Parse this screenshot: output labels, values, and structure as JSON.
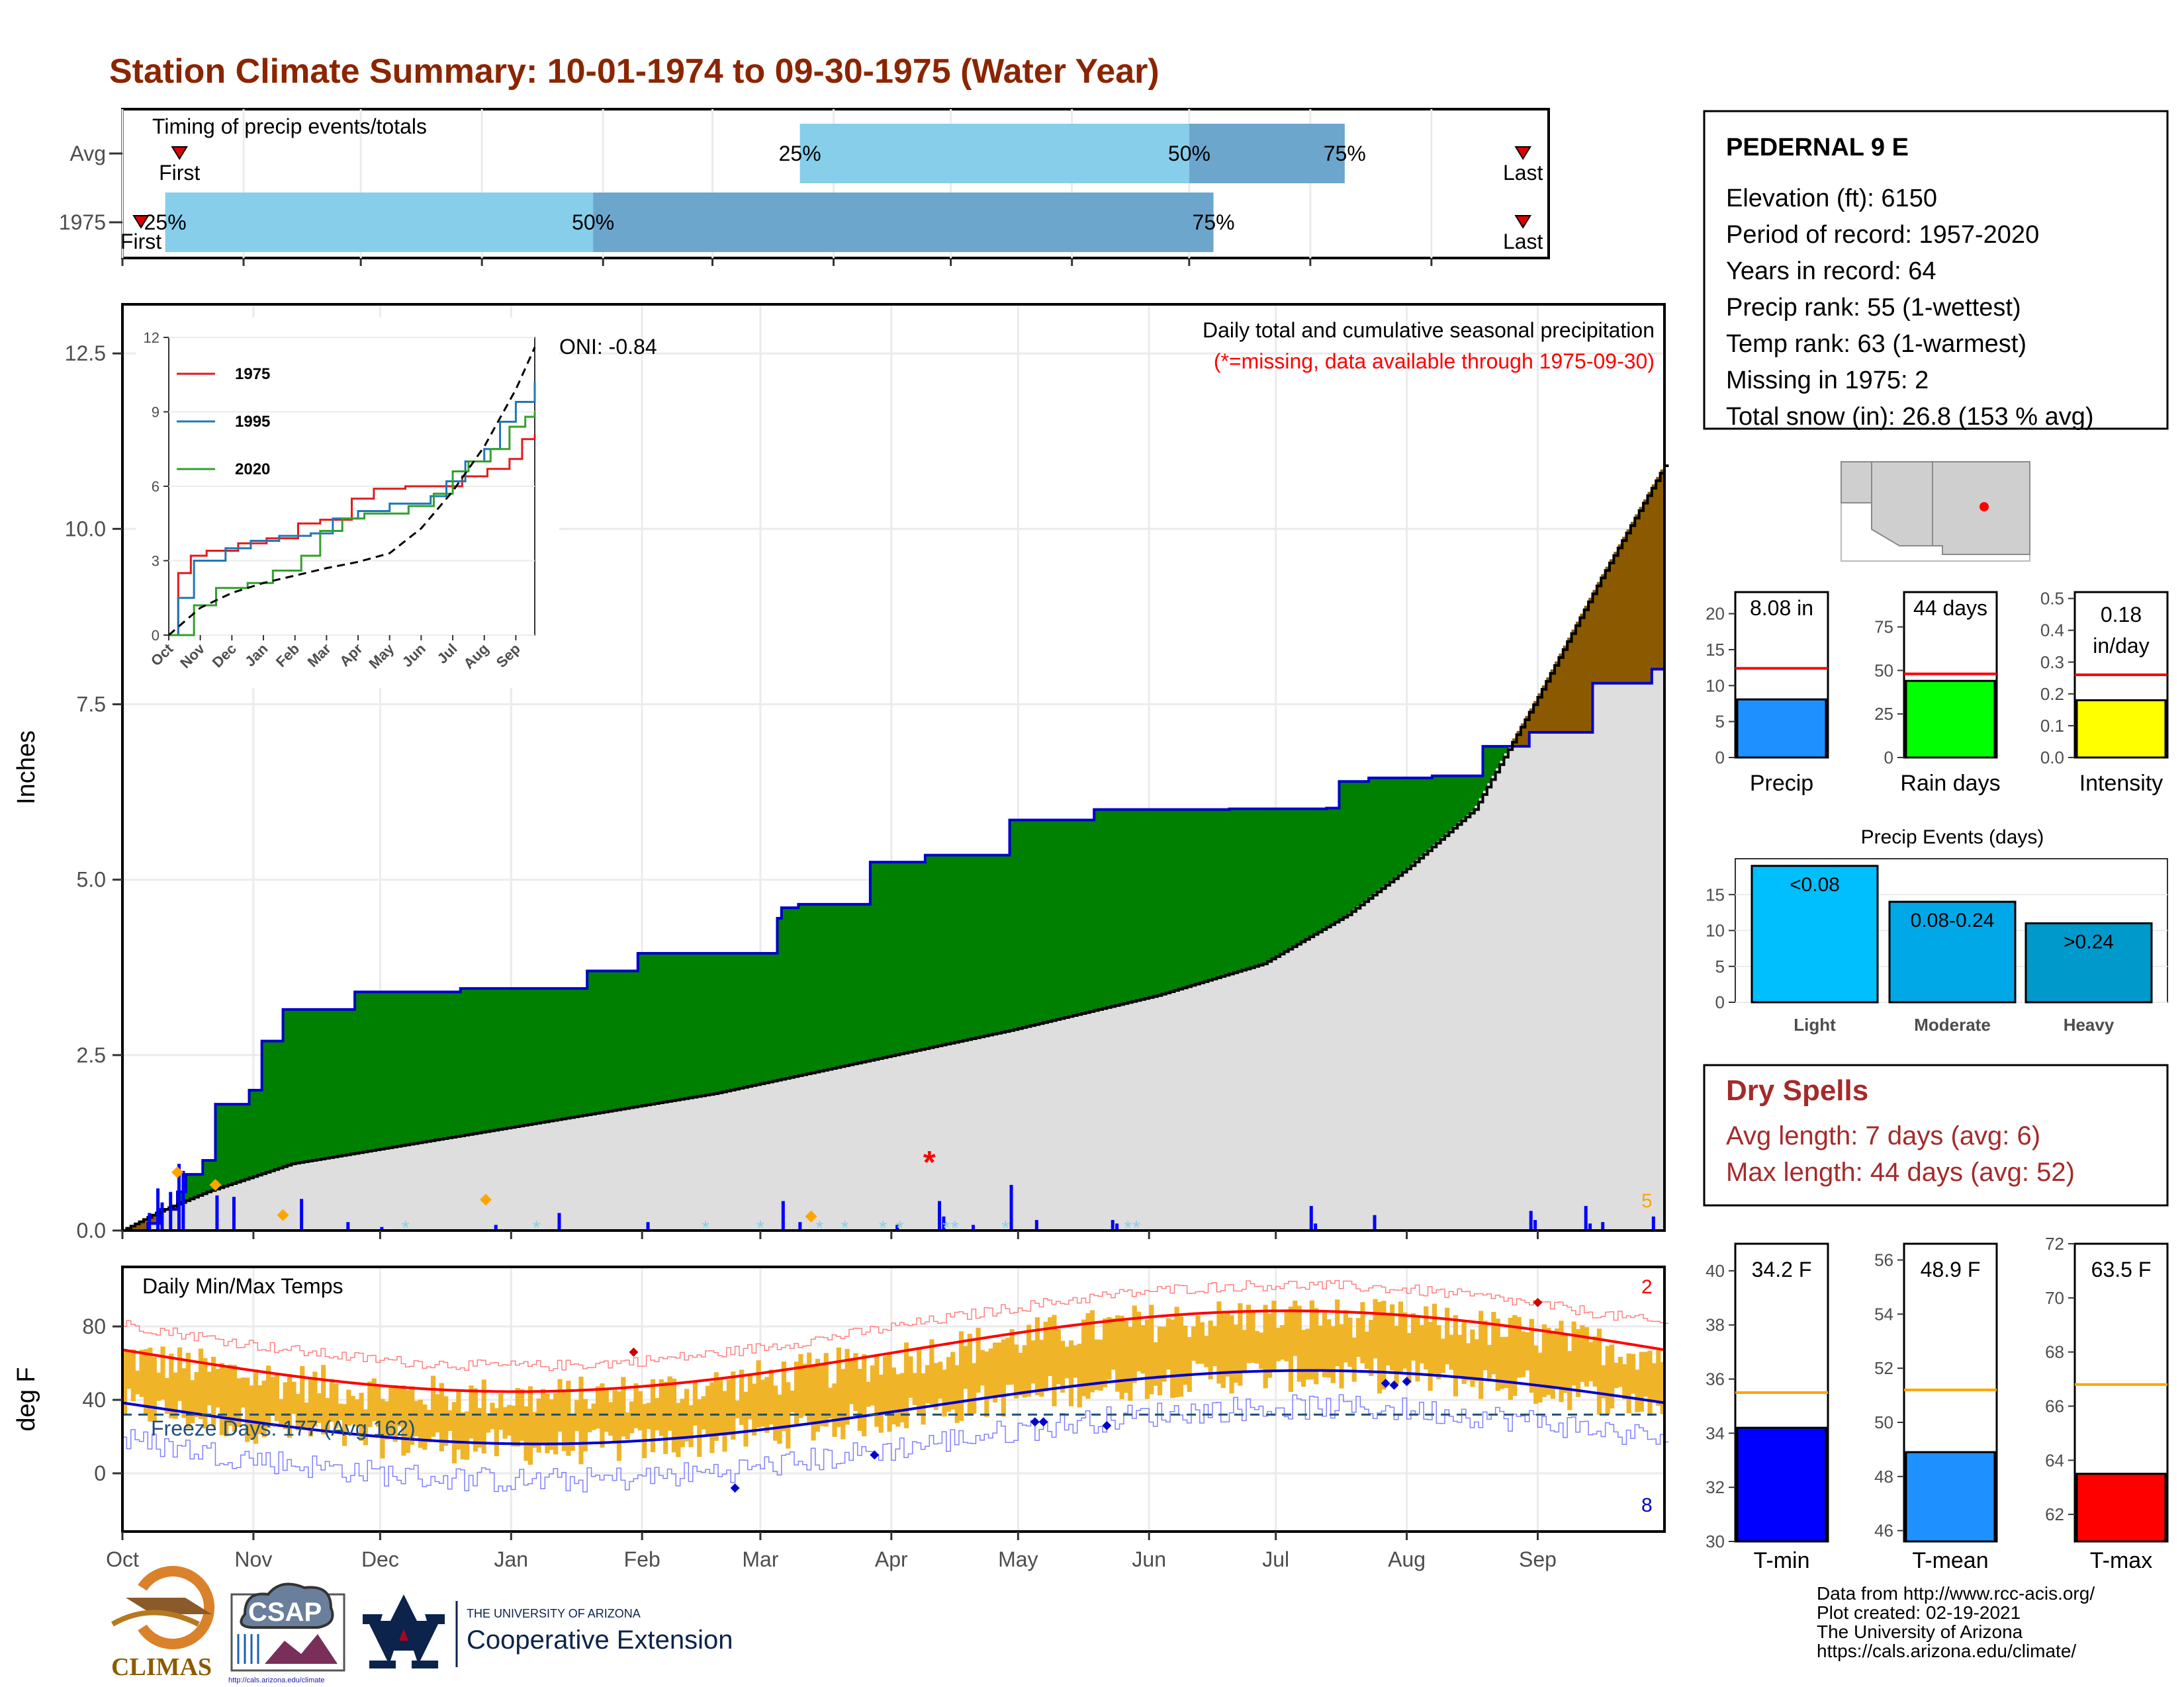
{
  "title": "Station Climate Summary: 10-01-1974 to 09-30-1975 (Water Year)",
  "timing": {
    "title": "Timing of precip events/totals",
    "rows": [
      {
        "label": "Avg",
        "first": 0.04,
        "q25": 0.475,
        "q50": 0.748,
        "q75": 0.857,
        "last": 0.982,
        "first_label": "First",
        "last_label": "Last",
        "q25_label": "25%",
        "q50_label": "50%",
        "q75_label": "75%"
      },
      {
        "label": "1975",
        "first": 0.013,
        "q25": 0.03,
        "q50": 0.33,
        "q75": 0.765,
        "last": 0.982,
        "first_label": "First",
        "last_label": "Last",
        "q25_label": "25%",
        "q50_label": "50%",
        "q75_label": "75%"
      }
    ],
    "colors": {
      "light": "#87ceeb",
      "dark": "#6ca6cd",
      "marker": "#e00000"
    }
  },
  "precip_panel": {
    "ylabel": "Inches",
    "yticks": [
      "0.0",
      "2.5",
      "5.0",
      "7.5",
      "10.0",
      "12.5"
    ],
    "ymax": 13.2,
    "title_line1": "Daily total and cumulative seasonal precipitation",
    "title_line2": "(*=missing, data available through 1975-09-30)",
    "oni": "ONI: -0.84",
    "corner_count": "5",
    "colors": {
      "above": "#008000",
      "below": "#8b5a00",
      "avg_fill": "#dedede",
      "line": "#0000cc",
      "avgline": "#000000",
      "bars": "#0000ff",
      "snow": "#ffa500",
      "missing": "#ff0000",
      "frost": "#87ceeb"
    }
  },
  "inset": {
    "yticks": [
      "0",
      "3",
      "6",
      "9",
      "12"
    ],
    "xticks": [
      "Oct",
      "Nov",
      "Dec",
      "Jan",
      "Feb",
      "Mar",
      "Apr",
      "May",
      "Jun",
      "Jul",
      "Aug",
      "Sep"
    ],
    "legend": [
      {
        "name": "1975",
        "color": "#e31a1c"
      },
      {
        "name": "1995",
        "color": "#1f78b4"
      },
      {
        "name": "2020",
        "color": "#33a02c"
      }
    ]
  },
  "temp_panel": {
    "ylabel": "deg F",
    "yticks": [
      "0",
      "40",
      "80"
    ],
    "title": "Daily Min/Max Temps",
    "freeze": "Freeze Days: 177 (Avg 162)",
    "count_high": "2",
    "count_low": "8",
    "colors": {
      "bars": "#f0b429",
      "max": "#ff0000",
      "min": "#0000cc",
      "freeze": "#1f4e79"
    }
  },
  "months": [
    "Oct",
    "Nov",
    "Dec",
    "Jan",
    "Feb",
    "Mar",
    "Apr",
    "May",
    "Jun",
    "Jul",
    "Aug",
    "Sep"
  ],
  "station": {
    "name": "PEDERNAL 9 E",
    "lines": [
      "Elevation (ft): 6150",
      "Period of record: 1957-2020",
      "Years in record: 64",
      "Precip rank: 55 (1-wettest)",
      "Temp rank: 63 (1-warmest)",
      "Missing in 1975: 2",
      "Total snow (in): 26.8 (153 % avg)"
    ]
  },
  "bar_charts_top": [
    {
      "label": "Precip",
      "value_text": "8.08 in",
      "value": 8.08,
      "avg": 12.4,
      "ymax": 23,
      "ticks": [
        "0",
        "5",
        "10",
        "15",
        "20"
      ],
      "tickvals": [
        0,
        5,
        10,
        15,
        20
      ],
      "color": "#1e90ff"
    },
    {
      "label": "Rain days",
      "value_text": "44 days",
      "value": 44,
      "avg": 48,
      "ymax": 95,
      "ticks": [
        "0",
        "25",
        "50",
        "75"
      ],
      "tickvals": [
        0,
        25,
        50,
        75
      ],
      "color": "#00ff00"
    },
    {
      "label": "Intensity",
      "value_text": "0.18 in/day",
      "value_text_1": "0.18",
      "value_text_2": "in/day",
      "value": 0.18,
      "avg": 0.26,
      "ymax": 0.52,
      "ticks": [
        "0.0",
        "0.1",
        "0.2",
        "0.3",
        "0.4",
        "0.5"
      ],
      "tickvals": [
        0,
        0.1,
        0.2,
        0.3,
        0.4,
        0.5
      ],
      "color": "#ffff00"
    }
  ],
  "events": {
    "title": "Precip Events (days)",
    "ticks": [
      "0",
      "5",
      "10",
      "15"
    ],
    "tickvals": [
      0,
      5,
      10,
      15
    ],
    "ymax": 20,
    "bars": [
      {
        "label": "Light",
        "value_label": "<0.08",
        "value": 19,
        "color": "#00bfff"
      },
      {
        "label": "Moderate",
        "value_label": "0.08-0.24",
        "value": 14,
        "color": "#00a8e8"
      },
      {
        "label": "Heavy",
        "value_label": ">0.24",
        "value": 11,
        "color": "#0099cc"
      }
    ]
  },
  "dry_spells": {
    "title": "Dry Spells",
    "line1": "Avg length: 7 days (avg: 6)",
    "line2": "Max length: 44 days (avg: 52)",
    "color": "#a52a2a"
  },
  "temp_bars": [
    {
      "label": "T-min",
      "value_text": "34.2 F",
      "value": 34.2,
      "avg": 35.5,
      "ymin": 30,
      "ymax": 41,
      "ticks": [
        "30",
        "32",
        "34",
        "36",
        "38",
        "40"
      ],
      "tickvals": [
        30,
        32,
        34,
        36,
        38,
        40
      ],
      "color": "#0000ff"
    },
    {
      "label": "T-mean",
      "value_text": "48.9 F",
      "value": 48.9,
      "avg": 51.2,
      "ymin": 45.6,
      "ymax": 56.6,
      "ticks": [
        "46",
        "48",
        "50",
        "52",
        "54",
        "56"
      ],
      "tickvals": [
        46,
        48,
        50,
        52,
        54,
        56
      ],
      "color": "#1e90ff"
    },
    {
      "label": "T-max",
      "value_text": "63.5 F",
      "value": 63.5,
      "avg": 66.8,
      "ymin": 61,
      "ymax": 72,
      "ticks": [
        "62",
        "64",
        "66",
        "68",
        "70",
        "72"
      ],
      "tickvals": [
        62,
        64,
        66,
        68,
        70,
        72
      ],
      "color": "#ff0000"
    }
  ],
  "footer": {
    "lines": [
      "Data from http://www.rcc-acis.org/",
      "Plot created: 02-19-2021",
      "The University of Arizona",
      "https://cals.arizona.edu/climate/"
    ]
  },
  "logos": {
    "climas": "CLIMAS",
    "csap": "CSAP",
    "csap_url": "http://cals.arizona.edu/climate",
    "ua_top": "THE UNIVERSITY OF ARIZONA",
    "ua_bottom": "Cooperative Extension"
  }
}
